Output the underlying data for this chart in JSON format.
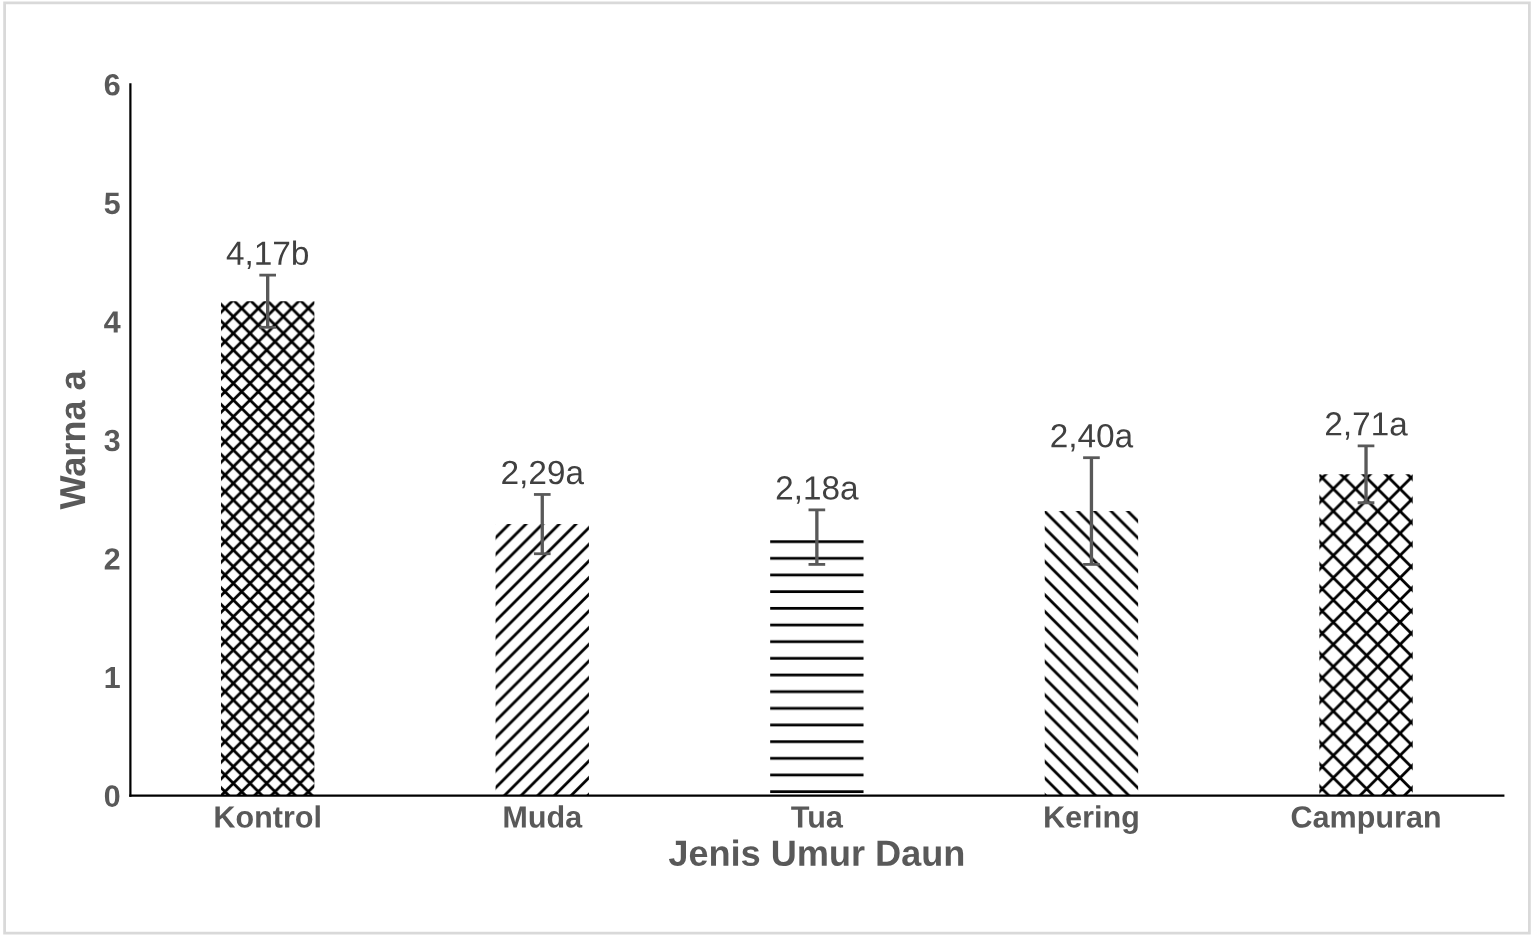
{
  "chart_data": {
    "type": "bar",
    "xlabel": "Jenis Umur Daun",
    "ylabel": "Warna a",
    "categories": [
      "Kontrol",
      "Muda",
      "Tua",
      "Kering",
      "Campuran"
    ],
    "values": [
      4.17,
      2.29,
      2.18,
      2.4,
      2.71
    ],
    "errors": [
      0.22,
      0.25,
      0.23,
      0.45,
      0.24
    ],
    "value_labels": [
      "4,17b",
      "2,29a",
      "2,18a",
      "2,40a",
      "2,71a"
    ],
    "color": "#000000",
    "ylim": [
      0,
      6
    ],
    "yticks": [
      0,
      1,
      2,
      3,
      4,
      5,
      6
    ],
    "grid": false
  }
}
